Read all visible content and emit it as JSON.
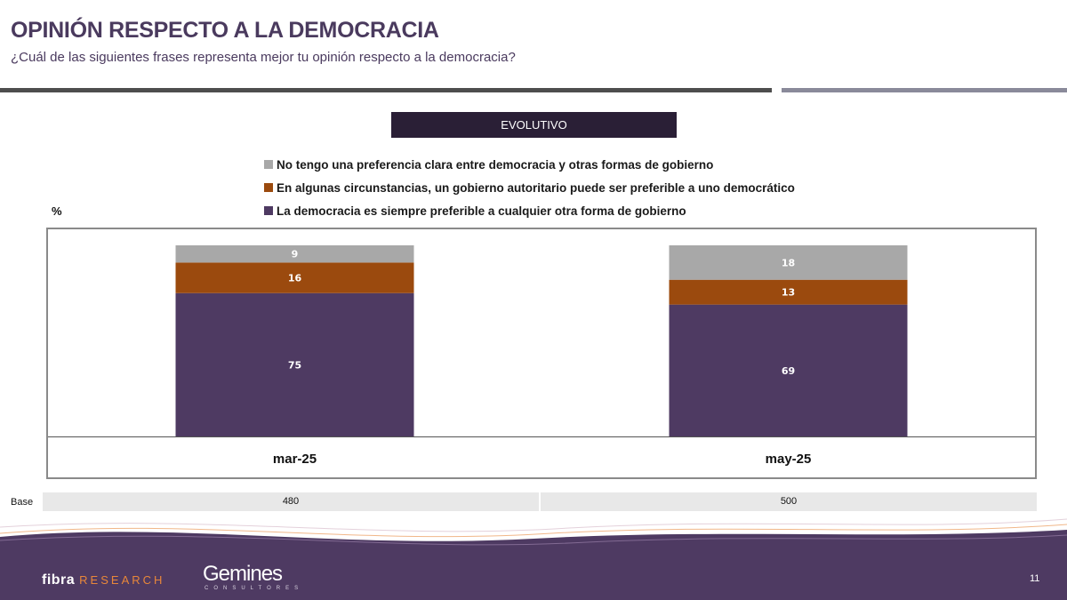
{
  "header": {
    "title": "OPINIÓN RESPECTO A LA DEMOCRACIA",
    "subtitle": "¿Cuál de las siguientes frases representa mejor tu opinión respecto a la democracia?"
  },
  "section_label": "EVOLUTIVO",
  "unit_label": "%",
  "chart_data": {
    "type": "bar",
    "stacked": true,
    "categories": [
      "mar-25",
      "may-25"
    ],
    "series": [
      {
        "name": "La democracia es siempre preferible a cualquier otra forma de gobierno",
        "color": "#4e3a62",
        "values": [
          75,
          69
        ]
      },
      {
        "name": "En algunas circunstancias, un gobierno autoritario puede ser preferible a uno democrático",
        "color": "#9b4a0e",
        "values": [
          16,
          13
        ]
      },
      {
        "name": "No tengo una preferencia clara entre democracia y otras formas de gobierno",
        "color": "#a8a8a8",
        "values": [
          9,
          18
        ]
      }
    ],
    "legend_order": [
      2,
      1,
      0
    ],
    "ylim": [
      0,
      100
    ],
    "grid": false,
    "legend_position": "top"
  },
  "base": {
    "label": "Base",
    "values": [
      "480",
      "500"
    ]
  },
  "footer": {
    "logo_fibra_main": "fibra",
    "logo_fibra_accent": "RESEARCH",
    "logo_gemines": "Gemines",
    "logo_gemines_sub": "CONSULTORES",
    "page_number": "11",
    "colors": {
      "band": "#4e3a62",
      "accent": "#e8873a"
    }
  }
}
